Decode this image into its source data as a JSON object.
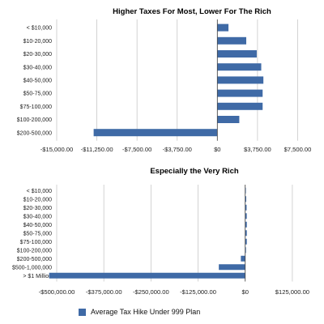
{
  "colors": {
    "bar": "#3f6aa6",
    "grid": "#c8c8c8",
    "axis": "#444444"
  },
  "legend": {
    "label": "Average Tax Hike Under 999 Plan"
  },
  "chart_data": [
    {
      "type": "bar",
      "orientation": "horizontal",
      "title": "Higher Taxes For Most, Lower For The Rich",
      "xlabel": "",
      "ylabel": "",
      "categories": [
        "< $10,000",
        "$10-20,000",
        "$20-30,000",
        "$30-40,000",
        "$40-50,000",
        "$50-75,000",
        "$75-100,000",
        "$100-200,000",
        "$200-500,000"
      ],
      "values": [
        1040,
        2700,
        3680,
        4100,
        4300,
        4230,
        4230,
        2050,
        -11550
      ],
      "xlim": [
        -15000,
        8750
      ],
      "xticks": [
        -15000,
        -11250,
        -7500,
        -3750,
        0,
        3750,
        7500
      ],
      "xtick_labels": [
        "-$15,000.00",
        "-$11,250.00",
        "-$7,500.00",
        "-$3,750.00",
        "$0",
        "$3,750.00",
        "$7,500.00"
      ],
      "grid": true
    },
    {
      "type": "bar",
      "orientation": "horizontal",
      "title": "Especially the Very Rich",
      "xlabel": "",
      "ylabel": "",
      "categories": [
        "< $10,000",
        "$10-20,000",
        "$20-30,000",
        "$30-40,000",
        "$40-50,000",
        "$50-75,000",
        "$75-100,000",
        "$100-200,000",
        "$200-500,000",
        "$500-1,000,000",
        "> $1 Million"
      ],
      "values": [
        1040,
        2700,
        3680,
        4100,
        4300,
        4230,
        4230,
        2050,
        -11550,
        -70000,
        -520000
      ],
      "xlim": [
        -500000,
        187500
      ],
      "xticks": [
        -500000,
        -375000,
        -250000,
        -125000,
        0,
        125000
      ],
      "xtick_labels": [
        "-$500,000.00",
        "-$375,000.00",
        "-$250,000.00",
        "-$125,000.00",
        "$0",
        "$125,000.00"
      ],
      "grid": true
    }
  ]
}
